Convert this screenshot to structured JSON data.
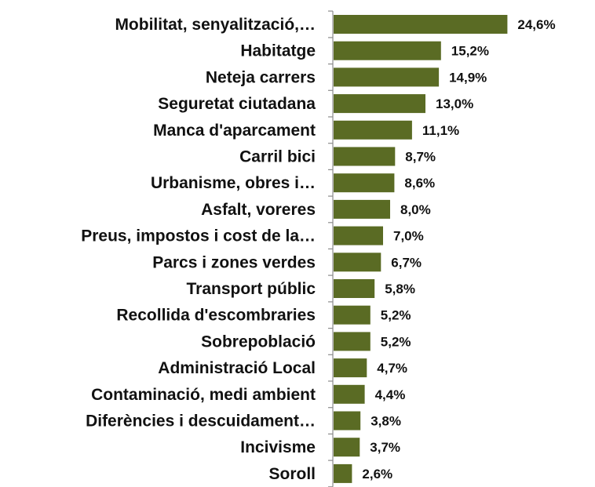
{
  "chart_data": {
    "type": "bar",
    "orientation": "horizontal",
    "title": "",
    "xlabel": "",
    "ylabel": "",
    "xlim": [
      0,
      25
    ],
    "grid": false,
    "categories": [
      "Mobilitat, senyalització,…",
      "Habitatge",
      "Neteja carrers",
      "Seguretat ciutadana",
      "Manca d'aparcament",
      "Carril bici",
      "Urbanisme, obres i…",
      "Asfalt, voreres",
      "Preus, impostos i cost de la…",
      "Parcs i zones verdes",
      "Transport públic",
      "Recollida d'escombraries",
      "Sobrepoblació",
      "Administració Local",
      "Contaminació, medi ambient",
      "Diferències i descuidament…",
      "Incivisme",
      "Soroll"
    ],
    "values": [
      24.6,
      15.2,
      14.9,
      13.0,
      11.1,
      8.7,
      8.6,
      8.0,
      7.0,
      6.7,
      5.8,
      5.2,
      5.2,
      4.7,
      4.4,
      3.8,
      3.7,
      2.6
    ],
    "data_labels": [
      "24,6%",
      "15,2%",
      "14,9%",
      "13,0%",
      "11,1%",
      "8,7%",
      "8,6%",
      "8,0%",
      "7,0%",
      "6,7%",
      "5,8%",
      "5,2%",
      "5,2%",
      "4,7%",
      "4,4%",
      "3,8%",
      "3,7%",
      "2,6%"
    ],
    "bar_color": "#5a6b24",
    "axis_color": "#8c8c8c"
  }
}
